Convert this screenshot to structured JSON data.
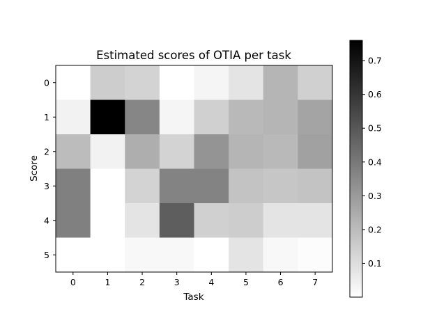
{
  "chart_data": {
    "type": "heatmap",
    "title": "Estimated scores of OTIA per task",
    "xlabel": "Task",
    "ylabel": "Score",
    "x": [
      "0",
      "1",
      "2",
      "3",
      "4",
      "5",
      "6",
      "7"
    ],
    "y": [
      "0",
      "1",
      "2",
      "3",
      "4",
      "5"
    ],
    "values": [
      [
        0.0,
        0.15,
        0.13,
        0.0,
        0.03,
        0.08,
        0.22,
        0.14
      ],
      [
        0.04,
        0.76,
        0.36,
        0.03,
        0.14,
        0.21,
        0.22,
        0.27
      ],
      [
        0.2,
        0.04,
        0.24,
        0.13,
        0.32,
        0.22,
        0.21,
        0.28
      ],
      [
        0.38,
        0.0,
        0.13,
        0.37,
        0.37,
        0.18,
        0.17,
        0.18
      ],
      [
        0.38,
        0.0,
        0.08,
        0.48,
        0.14,
        0.15,
        0.08,
        0.08
      ],
      [
        0.0,
        0.0,
        0.02,
        0.02,
        0.0,
        0.08,
        0.02,
        0.01
      ]
    ],
    "colormap": "Greys",
    "vmin": 0.0,
    "vmax": 0.76,
    "colorbar": {
      "ticks": [
        0.1,
        0.2,
        0.3,
        0.4,
        0.5,
        0.6,
        0.7
      ],
      "tick_labels": [
        "0.1",
        "0.2",
        "0.3",
        "0.4",
        "0.5",
        "0.6",
        "0.7"
      ]
    },
    "grid": false
  }
}
